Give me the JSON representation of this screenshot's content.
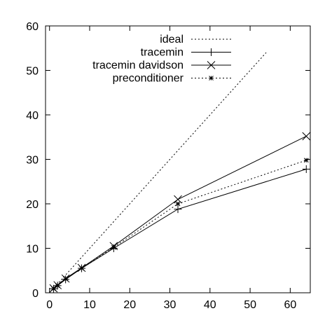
{
  "chart_data": {
    "type": "line",
    "title": "",
    "xlabel": "",
    "ylabel": "",
    "xlim": [
      -1,
      65
    ],
    "ylim": [
      0,
      60
    ],
    "xticks": [
      0,
      10,
      20,
      30,
      40,
      50,
      60
    ],
    "yticks": [
      0,
      10,
      20,
      30,
      40,
      50,
      60
    ],
    "grid": false,
    "legend_position": "top-right",
    "series": [
      {
        "name": "ideal",
        "style": "dotted",
        "marker": "none",
        "color": "#000000",
        "x": [
          0,
          54
        ],
        "y": [
          0,
          54
        ]
      },
      {
        "name": "tracemin",
        "style": "solid",
        "marker": "plus",
        "color": "#000000",
        "x": [
          1,
          2,
          4,
          8,
          16,
          32,
          64
        ],
        "y": [
          0.9,
          1.6,
          3.0,
          5.5,
          10.0,
          18.8,
          27.8
        ]
      },
      {
        "name": "tracemin davidson",
        "style": "solid",
        "marker": "cross",
        "color": "#000000",
        "x": [
          1,
          2,
          4,
          8,
          16,
          32,
          64
        ],
        "y": [
          1.0,
          1.7,
          3.2,
          5.6,
          10.5,
          21.0,
          35.2
        ]
      },
      {
        "name": "preconditioner",
        "style": "dotted",
        "marker": "star",
        "color": "#000000",
        "x": [
          1,
          2,
          4,
          8,
          16,
          32,
          64
        ],
        "y": [
          0.9,
          1.6,
          3.1,
          5.5,
          10.2,
          20.0,
          29.8
        ]
      }
    ]
  }
}
